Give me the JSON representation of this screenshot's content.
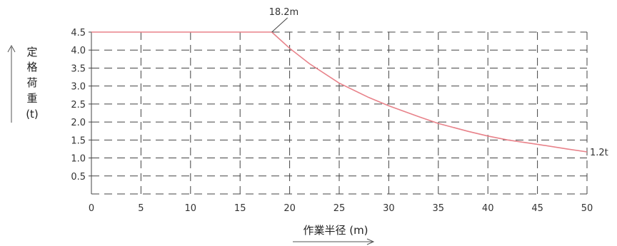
{
  "chart_data": {
    "type": "line",
    "xlabel": "作業半径 (m)",
    "ylabel_chars": [
      "定",
      "格",
      "荷",
      "重",
      "(t)"
    ],
    "xlim": [
      0,
      50
    ],
    "ylim": [
      0,
      4.5
    ],
    "x_ticks": [
      0,
      5,
      10,
      15,
      20,
      25,
      30,
      35,
      40,
      45,
      50
    ],
    "y_ticks": [
      0.5,
      1.0,
      1.5,
      2.0,
      2.5,
      3.0,
      3.5,
      4.0,
      4.5
    ],
    "x_tick_labels": [
      "0",
      "5",
      "10",
      "15",
      "20",
      "25",
      "30",
      "35",
      "40",
      "45",
      "50"
    ],
    "y_tick_labels": [
      "0.5",
      "1.0",
      "1.5",
      "2.0",
      "2.5",
      "3.0",
      "3.5",
      "4.0",
      "4.5"
    ],
    "grid": true,
    "grid_style": "dashed",
    "series": [
      {
        "color": "#e8828a",
        "points": [
          [
            0,
            4.5
          ],
          [
            18.2,
            4.5
          ],
          [
            20,
            4.05
          ],
          [
            22,
            3.62
          ],
          [
            25,
            3.08
          ],
          [
            28,
            2.68
          ],
          [
            30,
            2.45
          ],
          [
            33,
            2.15
          ],
          [
            35,
            1.96
          ],
          [
            38,
            1.74
          ],
          [
            40,
            1.61
          ],
          [
            42,
            1.5
          ],
          [
            45,
            1.38
          ],
          [
            48,
            1.25
          ],
          [
            50,
            1.17
          ]
        ]
      }
    ],
    "annotations": [
      {
        "text": "18.2m",
        "x": 18.2,
        "y": 4.5
      },
      {
        "text": "1.2t",
        "x": 50,
        "y": 1.17
      }
    ]
  }
}
